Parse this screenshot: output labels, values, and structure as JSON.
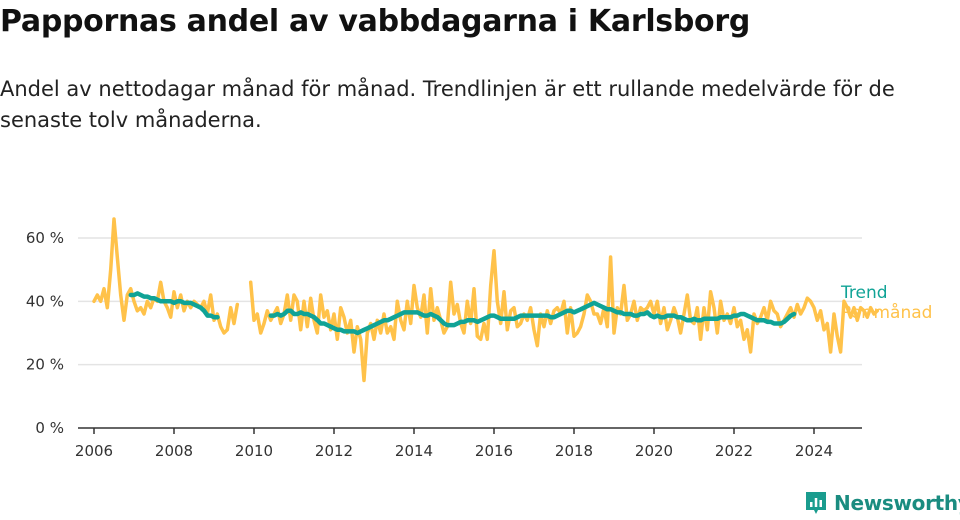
{
  "title": "Pappornas andel av vabbdagarna i Karlsborg",
  "subtitle": "Andel av nettodagar månad för månad. Trendlinjen är ett rullande medelvärde för de senaste tolv månaderna.",
  "brand": {
    "name": "Newsworthy",
    "icon": "newsworthy-logo-icon",
    "color": "#1a9c8e"
  },
  "colors": {
    "monthly": "#ffc24a",
    "trend": "#10a396",
    "axis": "#333333",
    "grid": "#e4e4e4"
  },
  "chart_data": {
    "type": "line",
    "ylim": [
      0,
      72
    ],
    "xlim": [
      2005.6,
      2025.2
    ],
    "grid": "horizontal",
    "y_ticks": [
      0,
      20,
      40,
      60
    ],
    "y_tick_labels": [
      "0 %",
      "20 %",
      "40 %",
      "60 %"
    ],
    "x_ticks": [
      2006,
      2008,
      2010,
      2012,
      2014,
      2016,
      2018,
      2020,
      2022,
      2024
    ],
    "x_tick_labels": [
      "2006",
      "2008",
      "2010",
      "2012",
      "2014",
      "2016",
      "2018",
      "2020",
      "2022",
      "2024"
    ],
    "legend_placement": "right",
    "series": [
      {
        "name": "Per månad",
        "color": "#ffc24a",
        "x_start": 2006,
        "step": 0.08333,
        "values": [
          40,
          42,
          40,
          44,
          38,
          50,
          66,
          54,
          42,
          34,
          42,
          44,
          40,
          37,
          38,
          36,
          40,
          38,
          41,
          40,
          46,
          40,
          38,
          35,
          43,
          38,
          42,
          37,
          40,
          38,
          40,
          39,
          38,
          40,
          36,
          42,
          34,
          36,
          32,
          30,
          31,
          38,
          33,
          39,
          null,
          null,
          null,
          46,
          34,
          36,
          30,
          33,
          37,
          34,
          36,
          38,
          33,
          36,
          42,
          34,
          42,
          40,
          31,
          40,
          32,
          41,
          34,
          30,
          42,
          35,
          37,
          31,
          36,
          28,
          38,
          35,
          30,
          34,
          24,
          32,
          28,
          15,
          30,
          33,
          28,
          34,
          30,
          36,
          30,
          32,
          28,
          40,
          34,
          31,
          40,
          33,
          45,
          38,
          35,
          42,
          30,
          44,
          34,
          38,
          34,
          30,
          32,
          46,
          36,
          39,
          33,
          30,
          40,
          33,
          44,
          29,
          28,
          33,
          28,
          45,
          56,
          40,
          33,
          43,
          31,
          37,
          38,
          32,
          33,
          36,
          34,
          38,
          31,
          26,
          36,
          32,
          37,
          33,
          37,
          38,
          36,
          40,
          30,
          38,
          29,
          30,
          32,
          36,
          42,
          40,
          36,
          36,
          33,
          38,
          32,
          54,
          30,
          38,
          36,
          45,
          34,
          36,
          40,
          34,
          38,
          37,
          38,
          40,
          36,
          40,
          33,
          38,
          31,
          34,
          38,
          35,
          30,
          36,
          42,
          34,
          33,
          38,
          28,
          38,
          31,
          43,
          38,
          30,
          40,
          34,
          36,
          33,
          38,
          32,
          34,
          28,
          31,
          24,
          36,
          33,
          35,
          38,
          34,
          40,
          37,
          36,
          32,
          34,
          36,
          38,
          35,
          39,
          36,
          38,
          41,
          40,
          38,
          34,
          37,
          31,
          33,
          24,
          36,
          29,
          24,
          40,
          38,
          35,
          38,
          34,
          38,
          37,
          35,
          38,
          36,
          37
        ]
      },
      {
        "name": "Trend",
        "color": "#10a396",
        "x_start": 2006.92,
        "step": 0.08333,
        "values": [
          42,
          42,
          42.5,
          42,
          41.5,
          41.5,
          41,
          41,
          40.5,
          40,
          40,
          40,
          40,
          39.5,
          40,
          40,
          39.5,
          39.5,
          39.5,
          39,
          38.5,
          38,
          37,
          35.5,
          35.5,
          35,
          35,
          null,
          null,
          null,
          null,
          null,
          null,
          null,
          null,
          null,
          null,
          null,
          null,
          null,
          null,
          null,
          35.5,
          35.5,
          36,
          35.5,
          36,
          37,
          37,
          36,
          36,
          36.5,
          36,
          36,
          35.5,
          35,
          34,
          33,
          33,
          32.5,
          32,
          31.5,
          31,
          31,
          30.5,
          30.5,
          30.5,
          30.5,
          30,
          30.5,
          31,
          31.5,
          32,
          32.5,
          33,
          33.5,
          34,
          34,
          34.5,
          35,
          35.5,
          36,
          36.5,
          36.5,
          36.5,
          36.5,
          36.5,
          36,
          35.5,
          35.5,
          36,
          35.5,
          35,
          34,
          33,
          32.5,
          32.5,
          32.5,
          33,
          33.5,
          33.5,
          34,
          34,
          34,
          33.5,
          34,
          34.5,
          35,
          35.5,
          35.5,
          35,
          34.5,
          34.5,
          34.5,
          34.5,
          34.5,
          35,
          35.5,
          35.5,
          35.5,
          35.5,
          35.5,
          35.5,
          35.5,
          35.5,
          35.5,
          35,
          35,
          35.5,
          36,
          36.5,
          37,
          37,
          36.5,
          37,
          37.5,
          38,
          38.5,
          39,
          39.5,
          39,
          38.5,
          38,
          37.5,
          37.5,
          37,
          36.5,
          36.5,
          36,
          36,
          36,
          35.5,
          35.5,
          36,
          36,
          36.5,
          35.5,
          35,
          35.5,
          35,
          35,
          35.5,
          35.5,
          35.5,
          35,
          35,
          34.5,
          34,
          34,
          34.5,
          34,
          34,
          34.5,
          34.5,
          34.5,
          34.5,
          34.5,
          35,
          35,
          35,
          35,
          35.5,
          35.5,
          36,
          36,
          35.5,
          35,
          34.5,
          34,
          34,
          34,
          33.5,
          33.5,
          33,
          33,
          33,
          33.5,
          34.5,
          35.5,
          36
        ]
      }
    ]
  }
}
